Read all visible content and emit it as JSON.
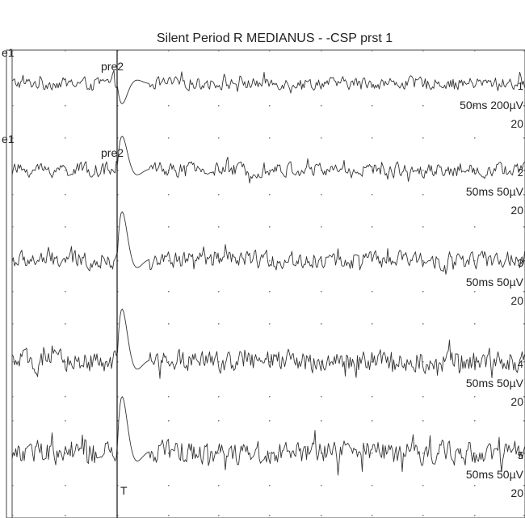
{
  "window": {
    "title": "Silent Period R MEDIANUS - -CSP prst 1"
  },
  "chart_data": {
    "type": "line",
    "title": "Silent Period R MEDIANUS - -CSP prst 1",
    "trigger_label": "T",
    "x_scale_ms_per_div": 50,
    "grid": "dotted",
    "traces": [
      {
        "index": "1",
        "markers": [
          "e1",
          "pre2"
        ],
        "time_base": "50ms",
        "sensitivity": "200µV",
        "right_label": "20"
      },
      {
        "index": "2",
        "markers": [
          "e1",
          "pre2"
        ],
        "time_base": "50ms",
        "sensitivity": "50µV",
        "right_label": "20"
      },
      {
        "index": "3",
        "markers": [],
        "time_base": "50ms",
        "sensitivity": "50µV",
        "right_label": "20"
      },
      {
        "index": "4",
        "markers": [],
        "time_base": "50ms",
        "sensitivity": "50µV",
        "right_label": "20"
      },
      {
        "index": "5",
        "markers": [],
        "time_base": "50ms",
        "sensitivity": "50µV",
        "right_label": "20"
      }
    ]
  }
}
